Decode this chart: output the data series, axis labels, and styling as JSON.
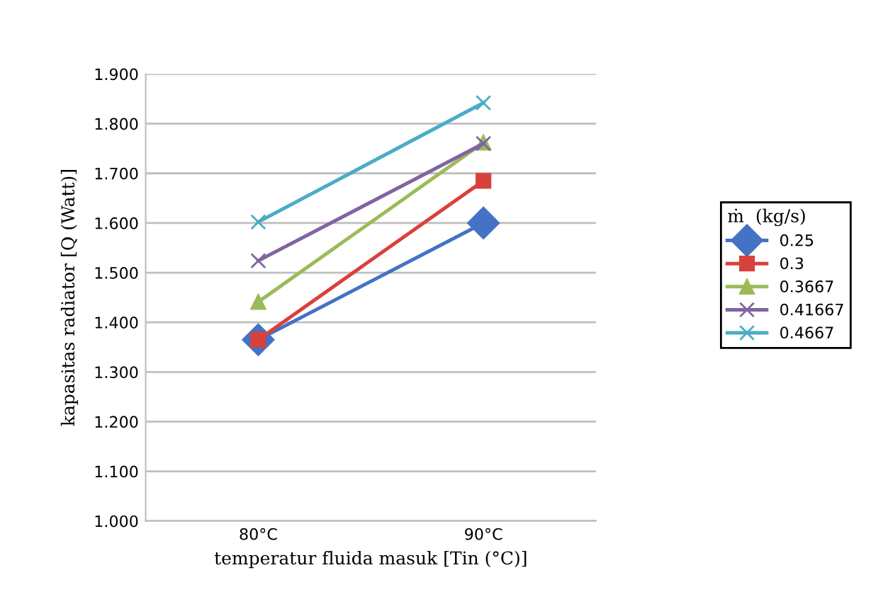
{
  "chart_data": {
    "type": "line",
    "xlabel": "temperatur fluida masuk [Tin (°C)]",
    "ylabel": "kapasitas radiator [Q (Watt)]",
    "legend_title": "ṁ  (kg/s)",
    "categories": [
      "80°C",
      "90°C"
    ],
    "series": [
      {
        "name": "0.25",
        "color": "#4472c4",
        "values": [
          1.365,
          1.6
        ],
        "marker": "diamond"
      },
      {
        "name": "0.3",
        "color": "#d9413c",
        "values": [
          1.365,
          1.685
        ],
        "marker": "square"
      },
      {
        "name": "0.3667",
        "color": "#9bbb59",
        "values": [
          1.441,
          1.762
        ],
        "marker": "triangle"
      },
      {
        "name": "0.41667",
        "color": "#8064a2",
        "values": [
          1.524,
          1.76
        ],
        "marker": "cross"
      },
      {
        "name": "0.4667",
        "color": "#4bacc6",
        "values": [
          1.602,
          1.842
        ],
        "marker": "cross"
      }
    ],
    "ylim": [
      1.0,
      1.9
    ],
    "yticks": [
      {
        "value": 1.0,
        "label": "1.000"
      },
      {
        "value": 1.1,
        "label": "1.100"
      },
      {
        "value": 1.2,
        "label": "1.200"
      },
      {
        "value": 1.3,
        "label": "1.300"
      },
      {
        "value": 1.4,
        "label": "1.400"
      },
      {
        "value": 1.5,
        "label": "1.500"
      },
      {
        "value": 1.6,
        "label": "1.600"
      },
      {
        "value": 1.7,
        "label": "1.700"
      },
      {
        "value": 1.8,
        "label": "1.800"
      },
      {
        "value": 1.9,
        "label": "1.900"
      }
    ],
    "grid": "y",
    "legend": "right",
    "line_style": "solid"
  }
}
